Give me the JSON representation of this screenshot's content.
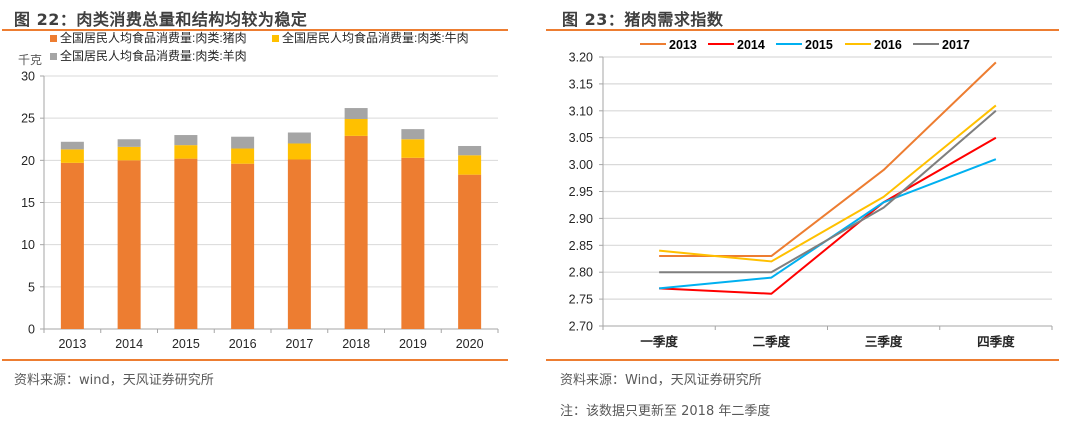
{
  "left_panel": {
    "figure_title": "图 22：肉类消费总量和结构均较为稳定",
    "source": "资料来源：wind，天风证券研究所"
  },
  "right_panel": {
    "figure_title": "图 23：猪肉需求指数",
    "source": "资料来源：Wind，天风证券研究所",
    "note": "注：该数据只更新至 2018 年二季度"
  },
  "colors": {
    "accent_rule": "#ED7D31",
    "pork": "#ED7D31",
    "beef": "#FFC000",
    "lamb": "#A5A5A5",
    "y2013": "#ED7D31",
    "y2014": "#FF0000",
    "y2015": "#00B0F0",
    "y2016": "#FFC000",
    "y2017": "#7F7F7F",
    "grid": "#D9D9D9",
    "axis": "#A6A6A6"
  },
  "chart_data": [
    {
      "type": "bar",
      "stacked": true,
      "title": "肉类消费总量和结构均较为稳定",
      "ylabel": "千克",
      "xlabel": "",
      "categories": [
        "2013",
        "2014",
        "2015",
        "2016",
        "2017",
        "2018",
        "2019",
        "2020"
      ],
      "ylim": [
        0,
        30
      ],
      "yticks": [
        0,
        5,
        10,
        15,
        20,
        25,
        30
      ],
      "grid": true,
      "legend_position": "top",
      "series": [
        {
          "name": "全国居民人均食品消费量:肉类:猪肉",
          "color_key": "pork",
          "values": [
            19.7,
            20.0,
            20.2,
            19.6,
            20.1,
            22.9,
            20.3,
            18.3
          ]
        },
        {
          "name": "全国居民人均食品消费量:肉类:牛肉",
          "color_key": "beef",
          "values": [
            1.6,
            1.6,
            1.6,
            1.8,
            1.9,
            2.0,
            2.2,
            2.3
          ]
        },
        {
          "name": "全国居民人均食品消费量:肉类:羊肉",
          "color_key": "lamb",
          "values": [
            0.9,
            0.9,
            1.2,
            1.4,
            1.3,
            1.3,
            1.2,
            1.1
          ]
        }
      ]
    },
    {
      "type": "line",
      "title": "猪肉需求指数",
      "xlabel": "",
      "ylabel": "",
      "categories": [
        "一季度",
        "二季度",
        "三季度",
        "四季度"
      ],
      "ylim": [
        2.7,
        3.2
      ],
      "yticks": [
        "2.70",
        "2.75",
        "2.80",
        "2.85",
        "2.90",
        "2.95",
        "3.00",
        "3.05",
        "3.10",
        "3.15",
        "3.20"
      ],
      "grid": true,
      "legend_position": "top",
      "series": [
        {
          "name": "2013",
          "color_key": "y2013",
          "values": [
            2.83,
            2.83,
            2.99,
            3.19
          ]
        },
        {
          "name": "2014",
          "color_key": "y2014",
          "values": [
            2.77,
            2.76,
            2.93,
            3.05
          ]
        },
        {
          "name": "2015",
          "color_key": "y2015",
          "values": [
            2.77,
            2.79,
            2.93,
            3.01
          ]
        },
        {
          "name": "2016",
          "color_key": "y2016",
          "values": [
            2.84,
            2.82,
            2.94,
            3.11
          ]
        },
        {
          "name": "2017",
          "color_key": "y2017",
          "values": [
            2.8,
            2.8,
            2.92,
            3.1
          ]
        }
      ]
    }
  ]
}
